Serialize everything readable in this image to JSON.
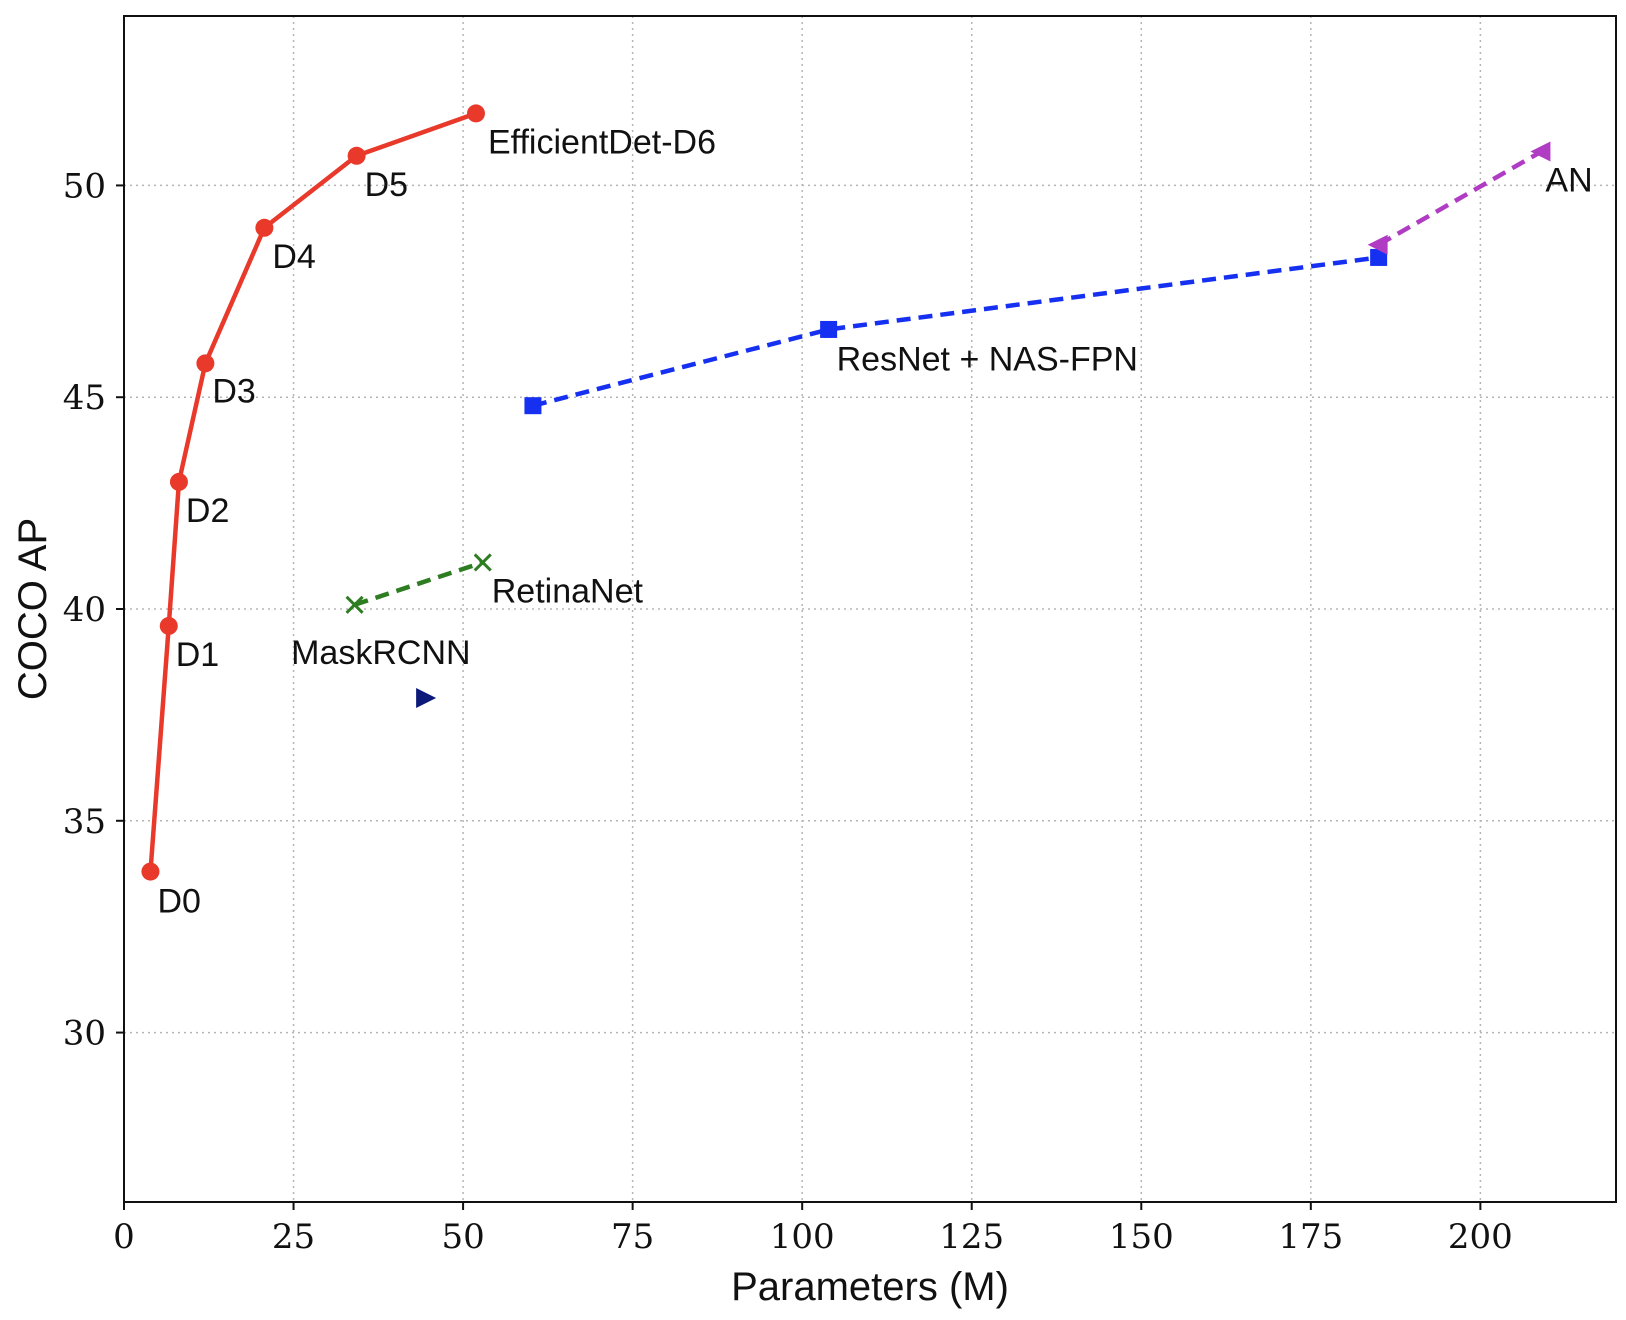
{
  "chart_data": {
    "type": "line",
    "xlabel": "Parameters (M)",
    "ylabel": "COCO AP",
    "xlim": [
      0,
      220
    ],
    "ylim": [
      26,
      54
    ],
    "xticks": [
      0,
      25,
      50,
      75,
      100,
      125,
      150,
      175,
      200
    ],
    "yticks": [
      30,
      35,
      40,
      45,
      50
    ],
    "grid": true,
    "series": [
      {
        "key": "efficientdet",
        "color": "#e8392b",
        "line_style": "solid",
        "marker": "circle",
        "points": [
          {
            "x": 3.9,
            "y": 33.8,
            "label": "D0"
          },
          {
            "x": 6.6,
            "y": 39.6,
            "label": "D1"
          },
          {
            "x": 8.1,
            "y": 43.0,
            "label": "D2"
          },
          {
            "x": 12.0,
            "y": 45.8,
            "label": "D3"
          },
          {
            "x": 20.7,
            "y": 49.0,
            "label": "D4"
          },
          {
            "x": 34.3,
            "y": 50.7,
            "label": "D5"
          },
          {
            "x": 51.9,
            "y": 51.7,
            "label": "EfficientDet-D6"
          }
        ]
      },
      {
        "key": "resnet-nas-fpn",
        "color": "#1530f0",
        "line_style": "dashed",
        "marker": "square",
        "points": [
          {
            "x": 60.3,
            "y": 44.8
          },
          {
            "x": 103.9,
            "y": 46.6,
            "label": "ResNet + NAS-FPN"
          },
          {
            "x": 185.0,
            "y": 48.3
          }
        ]
      },
      {
        "key": "an",
        "color": "#b03cc3",
        "line_style": "dashed",
        "marker": "triangle-left",
        "points": [
          {
            "x": 185.0,
            "y": 48.6
          },
          {
            "x": 209.0,
            "y": 50.8,
            "label": "AN"
          }
        ]
      },
      {
        "key": "retinanet",
        "color": "#2e7d22",
        "line_style": "dashed",
        "marker": "x",
        "points": [
          {
            "x": 34.0,
            "y": 40.1
          },
          {
            "x": 52.9,
            "y": 41.1,
            "label": "RetinaNet"
          }
        ]
      },
      {
        "key": "maskrcnn",
        "color": "#0d1a7a",
        "line_style": "none",
        "marker": "triangle-right",
        "points": [
          {
            "x": 44.4,
            "y": 37.9,
            "label": "MaskRCNN"
          }
        ]
      }
    ]
  }
}
